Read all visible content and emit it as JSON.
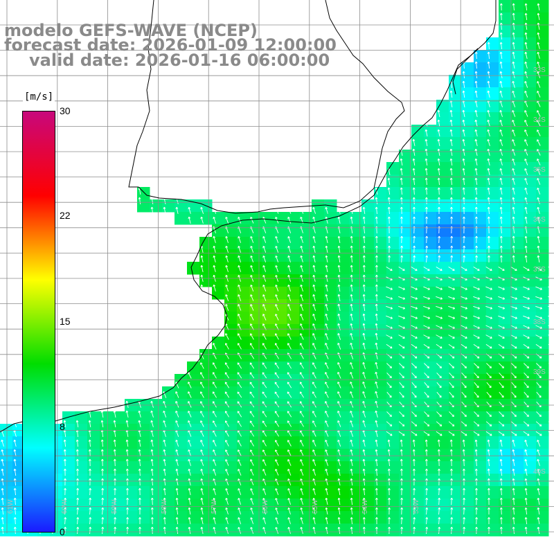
{
  "header": {
    "model": "modelo GEFS-WAVE (NCEP)",
    "forecast": "forecast date: 2026-01-09 12:00:00",
    "valid": "valid date: 2026-01-16 06:00:00"
  },
  "colorbar": {
    "units": "[m/s]",
    "ticks": [
      "30",
      "22",
      "15",
      "8",
      "0"
    ],
    "range": [
      0,
      30
    ],
    "colors": [
      "#1a1aff",
      "#00ffff",
      "#00dd00",
      "#ffff00",
      "#ff0000",
      "#c8087c"
    ]
  },
  "grid": {
    "lat_labels": [
      "33S",
      "34S",
      "35S",
      "36S",
      "37S",
      "38S",
      "39S",
      "40S"
    ],
    "lon_labels": [
      "61W",
      "60W",
      "59W",
      "58W",
      "57W",
      "56W",
      "55W",
      "54W",
      "53W"
    ]
  },
  "map": {
    "variable": "wind speed and direction",
    "land_color": "#ffffff",
    "grid_color": "#8c8c8c",
    "coast_color": "#000000",
    "arrow_color": "#ffffff"
  }
}
